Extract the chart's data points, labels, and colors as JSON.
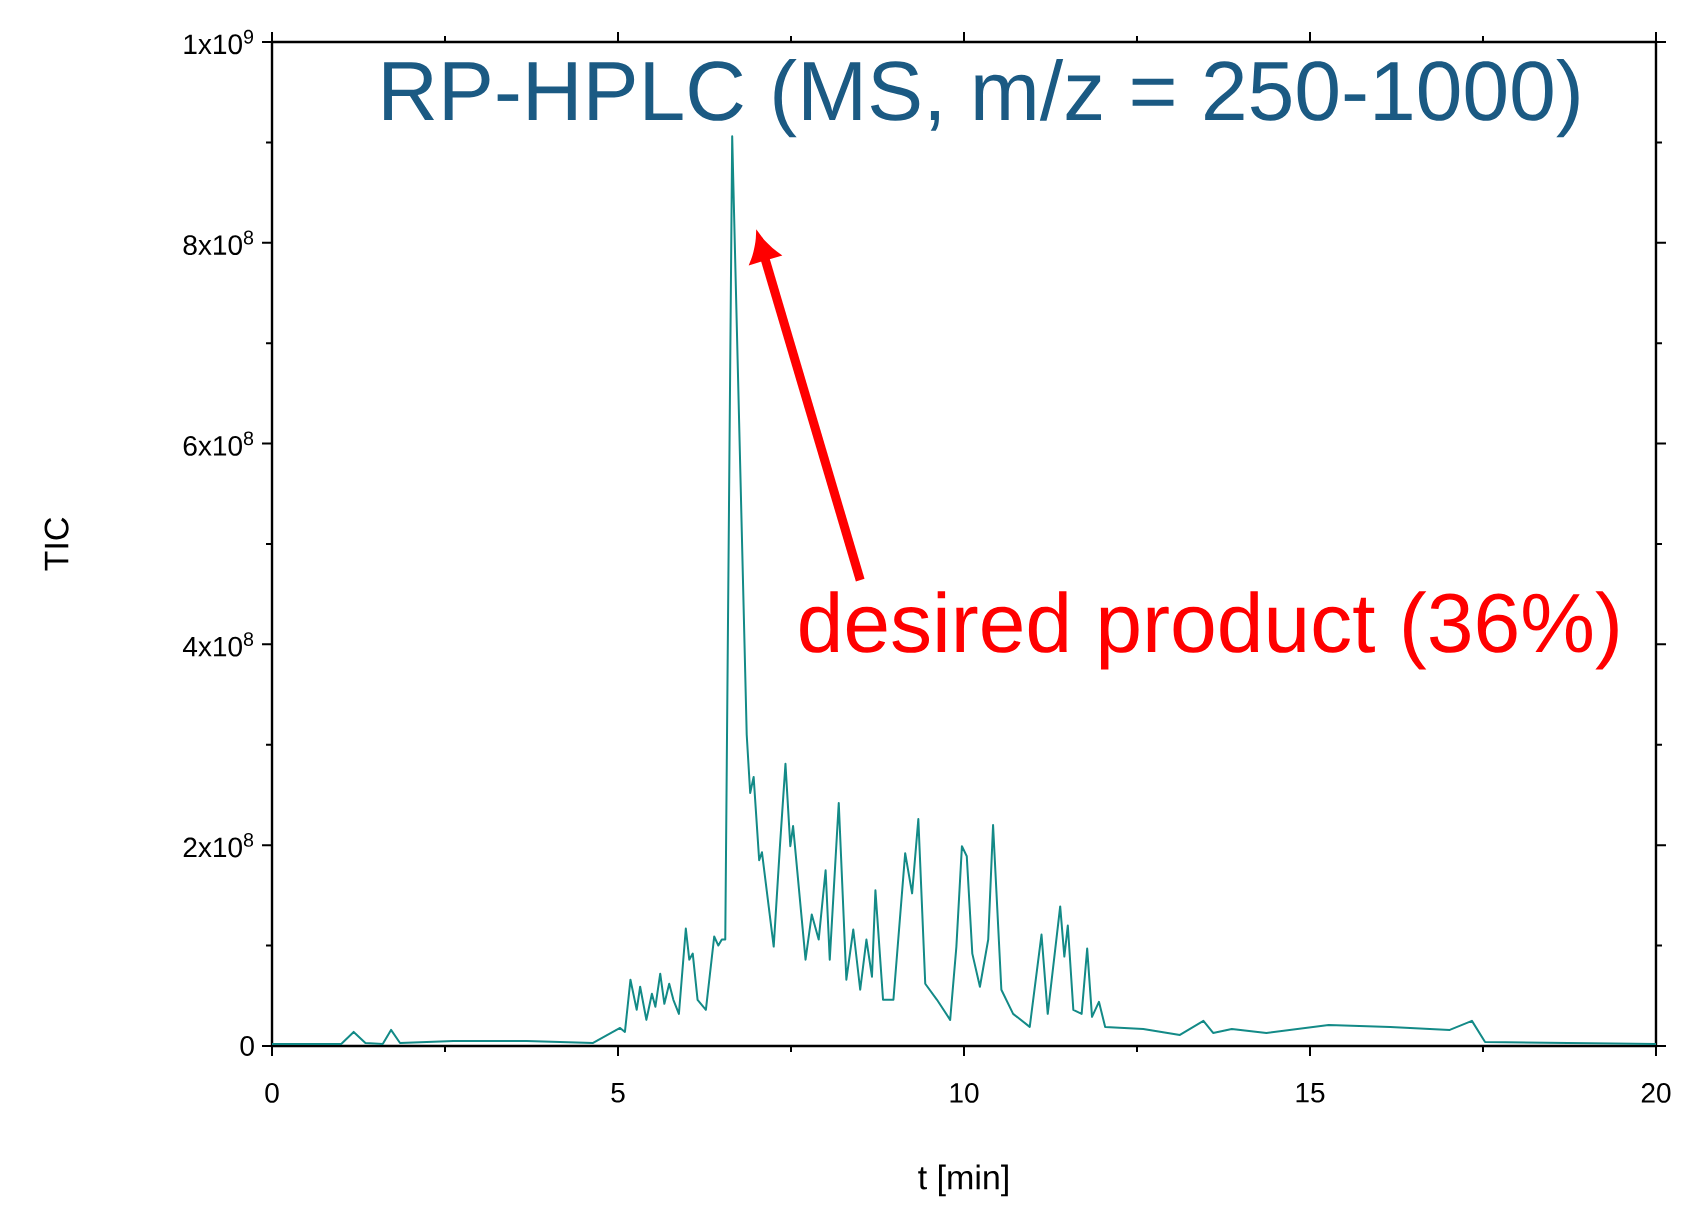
{
  "chart_data": {
    "type": "line",
    "title": "RP-HPLC (MS, m/z = 250-1000)",
    "xlabel": "t [min]",
    "ylabel": "TIC",
    "annotations": [
      "desired product (36%)"
    ],
    "xlim": [
      0,
      20
    ],
    "ylim": [
      0,
      1000000000
    ],
    "xticks": [
      0,
      5,
      10,
      15,
      20
    ],
    "yticks": [
      {
        "value": 0,
        "label": "0"
      },
      {
        "value": 200000000,
        "label": "2x10$^{8}$"
      },
      {
        "value": 400000000,
        "label": "4x10$^{8}$"
      },
      {
        "value": 600000000,
        "label": "6x10$^{8}$"
      },
      {
        "value": 800000000,
        "label": "8x10$^{8}$"
      },
      {
        "value": 1000000000,
        "label": "1x10$^{9}$"
      }
    ],
    "grid": false,
    "marker": "none",
    "line_style": "solid",
    "series": [
      {
        "color": "#138a87",
        "x": [
          0,
          1.0,
          1.18,
          1.35,
          1.6,
          1.72,
          1.85,
          2.62,
          3.68,
          4.64,
          5.03,
          5.1,
          5.18,
          5.27,
          5.32,
          5.41,
          5.49,
          5.54,
          5.61,
          5.67,
          5.74,
          5.8,
          5.88,
          5.98,
          6.03,
          6.08,
          6.15,
          6.27,
          6.39,
          6.45,
          6.5,
          6.55,
          6.65,
          6.86,
          6.91,
          6.96,
          7.04,
          7.08,
          7.25,
          7.34,
          7.42,
          7.49,
          7.53,
          7.71,
          7.8,
          7.9,
          8.0,
          8.06,
          8.19,
          8.3,
          8.4,
          8.5,
          8.59,
          8.67,
          8.72,
          8.83,
          8.98,
          9.15,
          9.25,
          9.34,
          9.44,
          9.61,
          9.8,
          9.89,
          9.97,
          10.04,
          10.12,
          10.23,
          10.35,
          10.42,
          10.54,
          10.71,
          10.95,
          11.12,
          11.21,
          11.39,
          11.45,
          11.5,
          11.58,
          11.7,
          11.78,
          11.85,
          11.95,
          12.04,
          12.59,
          13.12,
          13.46,
          13.6,
          13.87,
          14.37,
          15.27,
          16.16,
          17.02,
          17.34,
          17.53,
          20
        ],
        "values": [
          2000000,
          2000000,
          14000000,
          3000000,
          2000000,
          16000000,
          3000000,
          5000000,
          5000000,
          3000000,
          18000000,
          14000000,
          66000000,
          36000000,
          59000000,
          26000000,
          52000000,
          39000000,
          72000000,
          42000000,
          62000000,
          46000000,
          32000000,
          117000000,
          86000000,
          92000000,
          46000000,
          36000000,
          109000000,
          100000000,
          106000000,
          106000000,
          906000000,
          310000000,
          252000000,
          268000000,
          185000000,
          193000000,
          99000000,
          199000000,
          281000000,
          199000000,
          219000000,
          86000000,
          131000000,
          106000000,
          175000000,
          86000000,
          242000000,
          66000000,
          116000000,
          56000000,
          106000000,
          69000000,
          155000000,
          46000000,
          46000000,
          192000000,
          152000000,
          226000000,
          62000000,
          46000000,
          26000000,
          99000000,
          199000000,
          189000000,
          92000000,
          59000000,
          106000000,
          220000000,
          56000000,
          32000000,
          19000000,
          111000000,
          32000000,
          139000000,
          89000000,
          120000000,
          36000000,
          32000000,
          97000000,
          29000000,
          44000000,
          19000000,
          17000000,
          11000000,
          25000000,
          13000000,
          17000000,
          13000000,
          21000000,
          19000000,
          16000000,
          25000000,
          4000000,
          2000000
        ]
      }
    ]
  }
}
